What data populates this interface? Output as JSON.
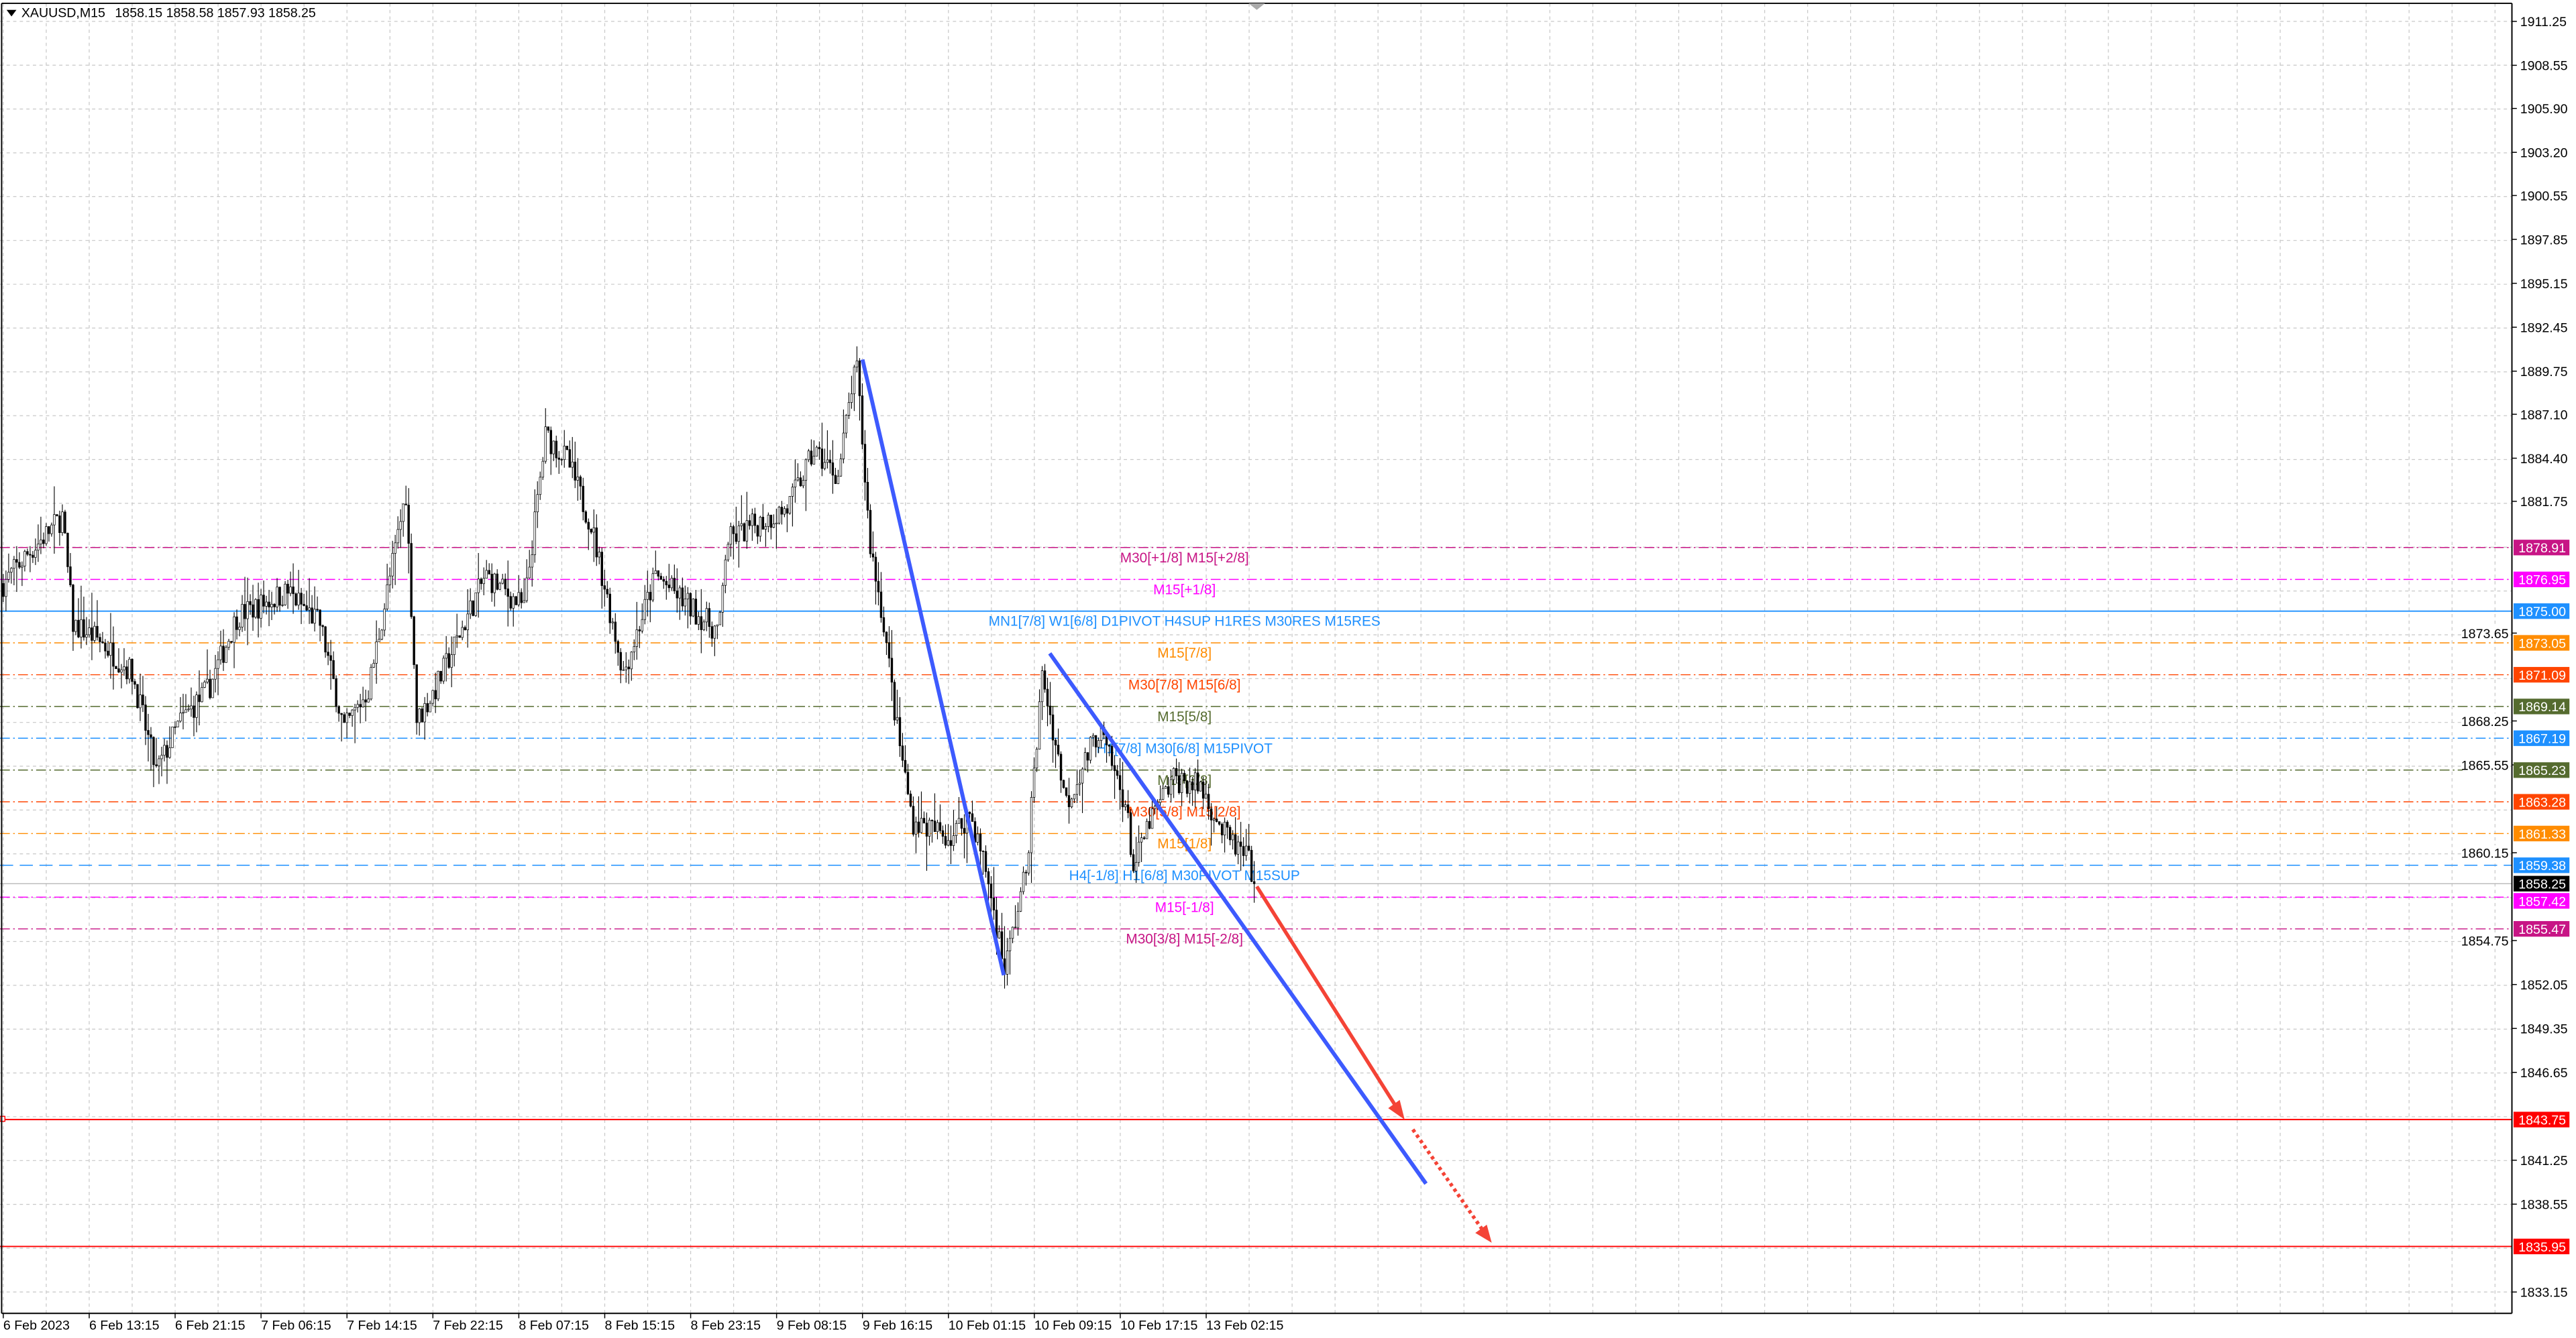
{
  "header": {
    "symbol": "XAUUSD,M15",
    "ohlc": "1858.15 1858.58 1857.93 1858.25"
  },
  "chart_data": {
    "type": "candlestick",
    "symbol": "XAUUSD",
    "timeframe": "M15",
    "grid": true,
    "ylim": [
      1833.15,
      1911.25
    ],
    "y_ticks": [
      "1911.25",
      "1908.55",
      "1905.90",
      "1903.20",
      "1900.55",
      "1897.85",
      "1895.15",
      "1892.45",
      "1889.75",
      "1887.10",
      "1884.40",
      "1881.75",
      "1873.65",
      "1868.25",
      "1865.55",
      "1860.15",
      "1854.75",
      "1852.05",
      "1849.35",
      "1846.65",
      "1841.25",
      "1838.55",
      "1833.15"
    ],
    "x_ticks": [
      "6 Feb 2023",
      "6 Feb 13:15",
      "6 Feb 21:15",
      "7 Feb 06:15",
      "7 Feb 14:15",
      "7 Feb 22:15",
      "8 Feb 07:15",
      "8 Feb 15:15",
      "8 Feb 23:15",
      "9 Feb 08:15",
      "9 Feb 16:15",
      "10 Feb 01:15",
      "10 Feb 09:15",
      "10 Feb 17:15",
      "13 Feb 02:15"
    ],
    "current_price": 1858.25,
    "current_price_color": "#000000",
    "price_path_approx": [
      [
        "6 Feb 05:15",
        1876.7
      ],
      [
        "6 Feb 07:15",
        1878.3
      ],
      [
        "6 Feb 10:45",
        1880.8
      ],
      [
        "6 Feb 11:45",
        1874.2
      ],
      [
        "6 Feb 14:15",
        1873.2
      ],
      [
        "6 Feb 17:15",
        1871.2
      ],
      [
        "6 Feb 19:30",
        1865.1
      ],
      [
        "6 Feb 21:45",
        1868.2
      ],
      [
        "7 Feb 00:45",
        1870.2
      ],
      [
        "7 Feb 03:45",
        1874.7
      ],
      [
        "7 Feb 08:45",
        1876.2
      ],
      [
        "7 Feb 11:45",
        1874.2
      ],
      [
        "7 Feb 14:00",
        1867.7
      ],
      [
        "7 Feb 16:15",
        1870.2
      ],
      [
        "7 Feb 19:45",
        1882.3
      ],
      [
        "7 Feb 20:45",
        1868.2
      ],
      [
        "7 Feb 22:30",
        1870.2
      ],
      [
        "8 Feb 00:45",
        1873.2
      ],
      [
        "8 Feb 03:45",
        1877.2
      ],
      [
        "8 Feb 07:45",
        1875.2
      ],
      [
        "8 Feb 09:45",
        1885.8
      ],
      [
        "8 Feb 11:45",
        1884.3
      ],
      [
        "8 Feb 14:00",
        1880.3
      ],
      [
        "8 Feb 17:00",
        1871.2
      ],
      [
        "8 Feb 20:00",
        1877.2
      ],
      [
        "8 Feb 23:15",
        1875.2
      ],
      [
        "9 Feb 02:15",
        1873.7
      ],
      [
        "9 Feb 03:00",
        1879.3
      ],
      [
        "9 Feb 06:00",
        1880.3
      ],
      [
        "9 Feb 09:15",
        1881.3
      ],
      [
        "9 Feb 11:45",
        1884.8
      ],
      [
        "9 Feb 14:00",
        1883.3
      ],
      [
        "9 Feb 15:15",
        1888.8
      ],
      [
        "9 Feb 15:45",
        1889.8
      ],
      [
        "9 Feb 17:00",
        1879.3
      ],
      [
        "9 Feb 18:30",
        1874.2
      ],
      [
        "9 Feb 19:45",
        1868.2
      ],
      [
        "9 Feb 21:30",
        1862.1
      ],
      [
        "10 Feb 01:30",
        1861.1
      ],
      [
        "10 Feb 03:15",
        1862.6
      ],
      [
        "10 Feb 04:45",
        1859.1
      ],
      [
        "10 Feb 06:30",
        1853.0
      ],
      [
        "10 Feb 08:30",
        1859.1
      ],
      [
        "10 Feb 10:00",
        1871.2
      ],
      [
        "10 Feb 12:15",
        1863.2
      ],
      [
        "10 Feb 15:15",
        1867.7
      ],
      [
        "10 Feb 17:45",
        1863.2
      ],
      [
        "10 Feb 18:30",
        1859.1
      ],
      [
        "10 Feb 20:00",
        1862.1
      ],
      [
        "10 Feb 22:15",
        1864.7
      ],
      [
        "13 Feb 01:45",
        1864.2
      ],
      [
        "13 Feb 04:00",
        1861.2
      ],
      [
        "13 Feb 06:15",
        1859.6
      ],
      [
        "13 Feb 06:45",
        1858.25
      ]
    ],
    "levels": [
      {
        "price": "1878.91",
        "label": "M30[+1/8] M15[+2/8]",
        "color": "#c71585",
        "style": "dashdot"
      },
      {
        "price": "1876.95",
        "label": "M15[+1/8]",
        "color": "#ff00ff",
        "style": "dashdot"
      },
      {
        "price": "1875.00",
        "label": "MN1[7/8] W1[6/8] D1PIVOT H4SUP H1RES M30RES M15RES",
        "color": "#1e90ff",
        "style": "solid"
      },
      {
        "price": "1873.05",
        "label": "M15[7/8]",
        "color": "#ff8c00",
        "style": "dashdot"
      },
      {
        "price": "1871.09",
        "label": "M30[7/8] M15[6/8]",
        "color": "#ff4500",
        "style": "dashdot"
      },
      {
        "price": "1869.14",
        "label": "M15[5/8]",
        "color": "#556b2f",
        "style": "dashdot"
      },
      {
        "price": "1867.19",
        "label": "H1[7/8] M30[6/8] M15PIVOT",
        "color": "#1e90ff",
        "style": "dashdot"
      },
      {
        "price": "1865.23",
        "label": "M15[3/8]",
        "color": "#556b2f",
        "style": "dashdot"
      },
      {
        "price": "1863.28",
        "label": "M30[5/8] M15[2/8]",
        "color": "#ff4500",
        "style": "dashdot"
      },
      {
        "price": "1861.33",
        "label": "M15[1/8]",
        "color": "#ff8c00",
        "style": "dashdot"
      },
      {
        "price": "1859.38",
        "label": "H4[-1/8] H1[6/8] M30PIVOT M15SUP",
        "color": "#1e90ff",
        "style": "dash"
      },
      {
        "price": "1857.42",
        "label": "M15[-1/8]",
        "color": "#ff00ff",
        "style": "dashdot"
      },
      {
        "price": "1855.47",
        "label": "M30[3/8] M15[-2/8]",
        "color": "#c71585",
        "style": "dashdot"
      },
      {
        "price": "1843.75",
        "label": "",
        "color": "#ff0000",
        "style": "solid"
      },
      {
        "price": "1835.95",
        "label": "",
        "color": "#ff0000",
        "style": "solid"
      }
    ],
    "drawings": {
      "trendline_color": "#3d5afe",
      "arrow_color": "#f44336"
    }
  }
}
